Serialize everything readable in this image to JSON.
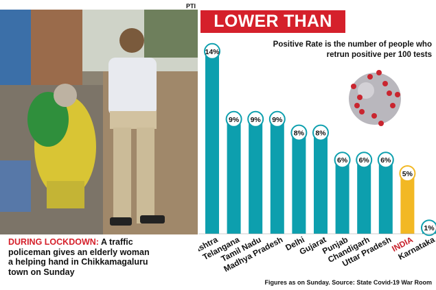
{
  "credit": "PTI",
  "caption": {
    "lead": "DURING LOCKDOWN:",
    "text": " A traffic policeman gives an elderly woman a helping hand in Chikkamagaluru town on Sunday"
  },
  "colors": {
    "bar": "#0d9fae",
    "highlight": "#f2b824",
    "title_bg": "#d5202b",
    "highlight_label": "#c8202a"
  },
  "chart_data": {
    "type": "bar",
    "title": "LOWER THAN LOW",
    "subtitle": "Positive Rate is the number of people who retrun positive per 100 tests",
    "source": "Figures as on Sunday. Source: State Covid-19 War Room",
    "categories": [
      "Maharashtra",
      "Telangana",
      "Tamil Nadu",
      "Madhya Pradesh",
      "Delhi",
      "Gujarat",
      "Punjab",
      "Chandigarh",
      "Uttar Pradesh",
      "INDIA",
      "Karnataka"
    ],
    "values": [
      14,
      9,
      9,
      9,
      8,
      8,
      6,
      6,
      6,
      5,
      1
    ],
    "data_labels": [
      "14%",
      "9%",
      "9%",
      "9%",
      "8%",
      "8%",
      "6%",
      "6%",
      "6%",
      "5%",
      "1%"
    ],
    "highlight": [
      "INDIA"
    ],
    "grid": false,
    "legend": "none"
  }
}
